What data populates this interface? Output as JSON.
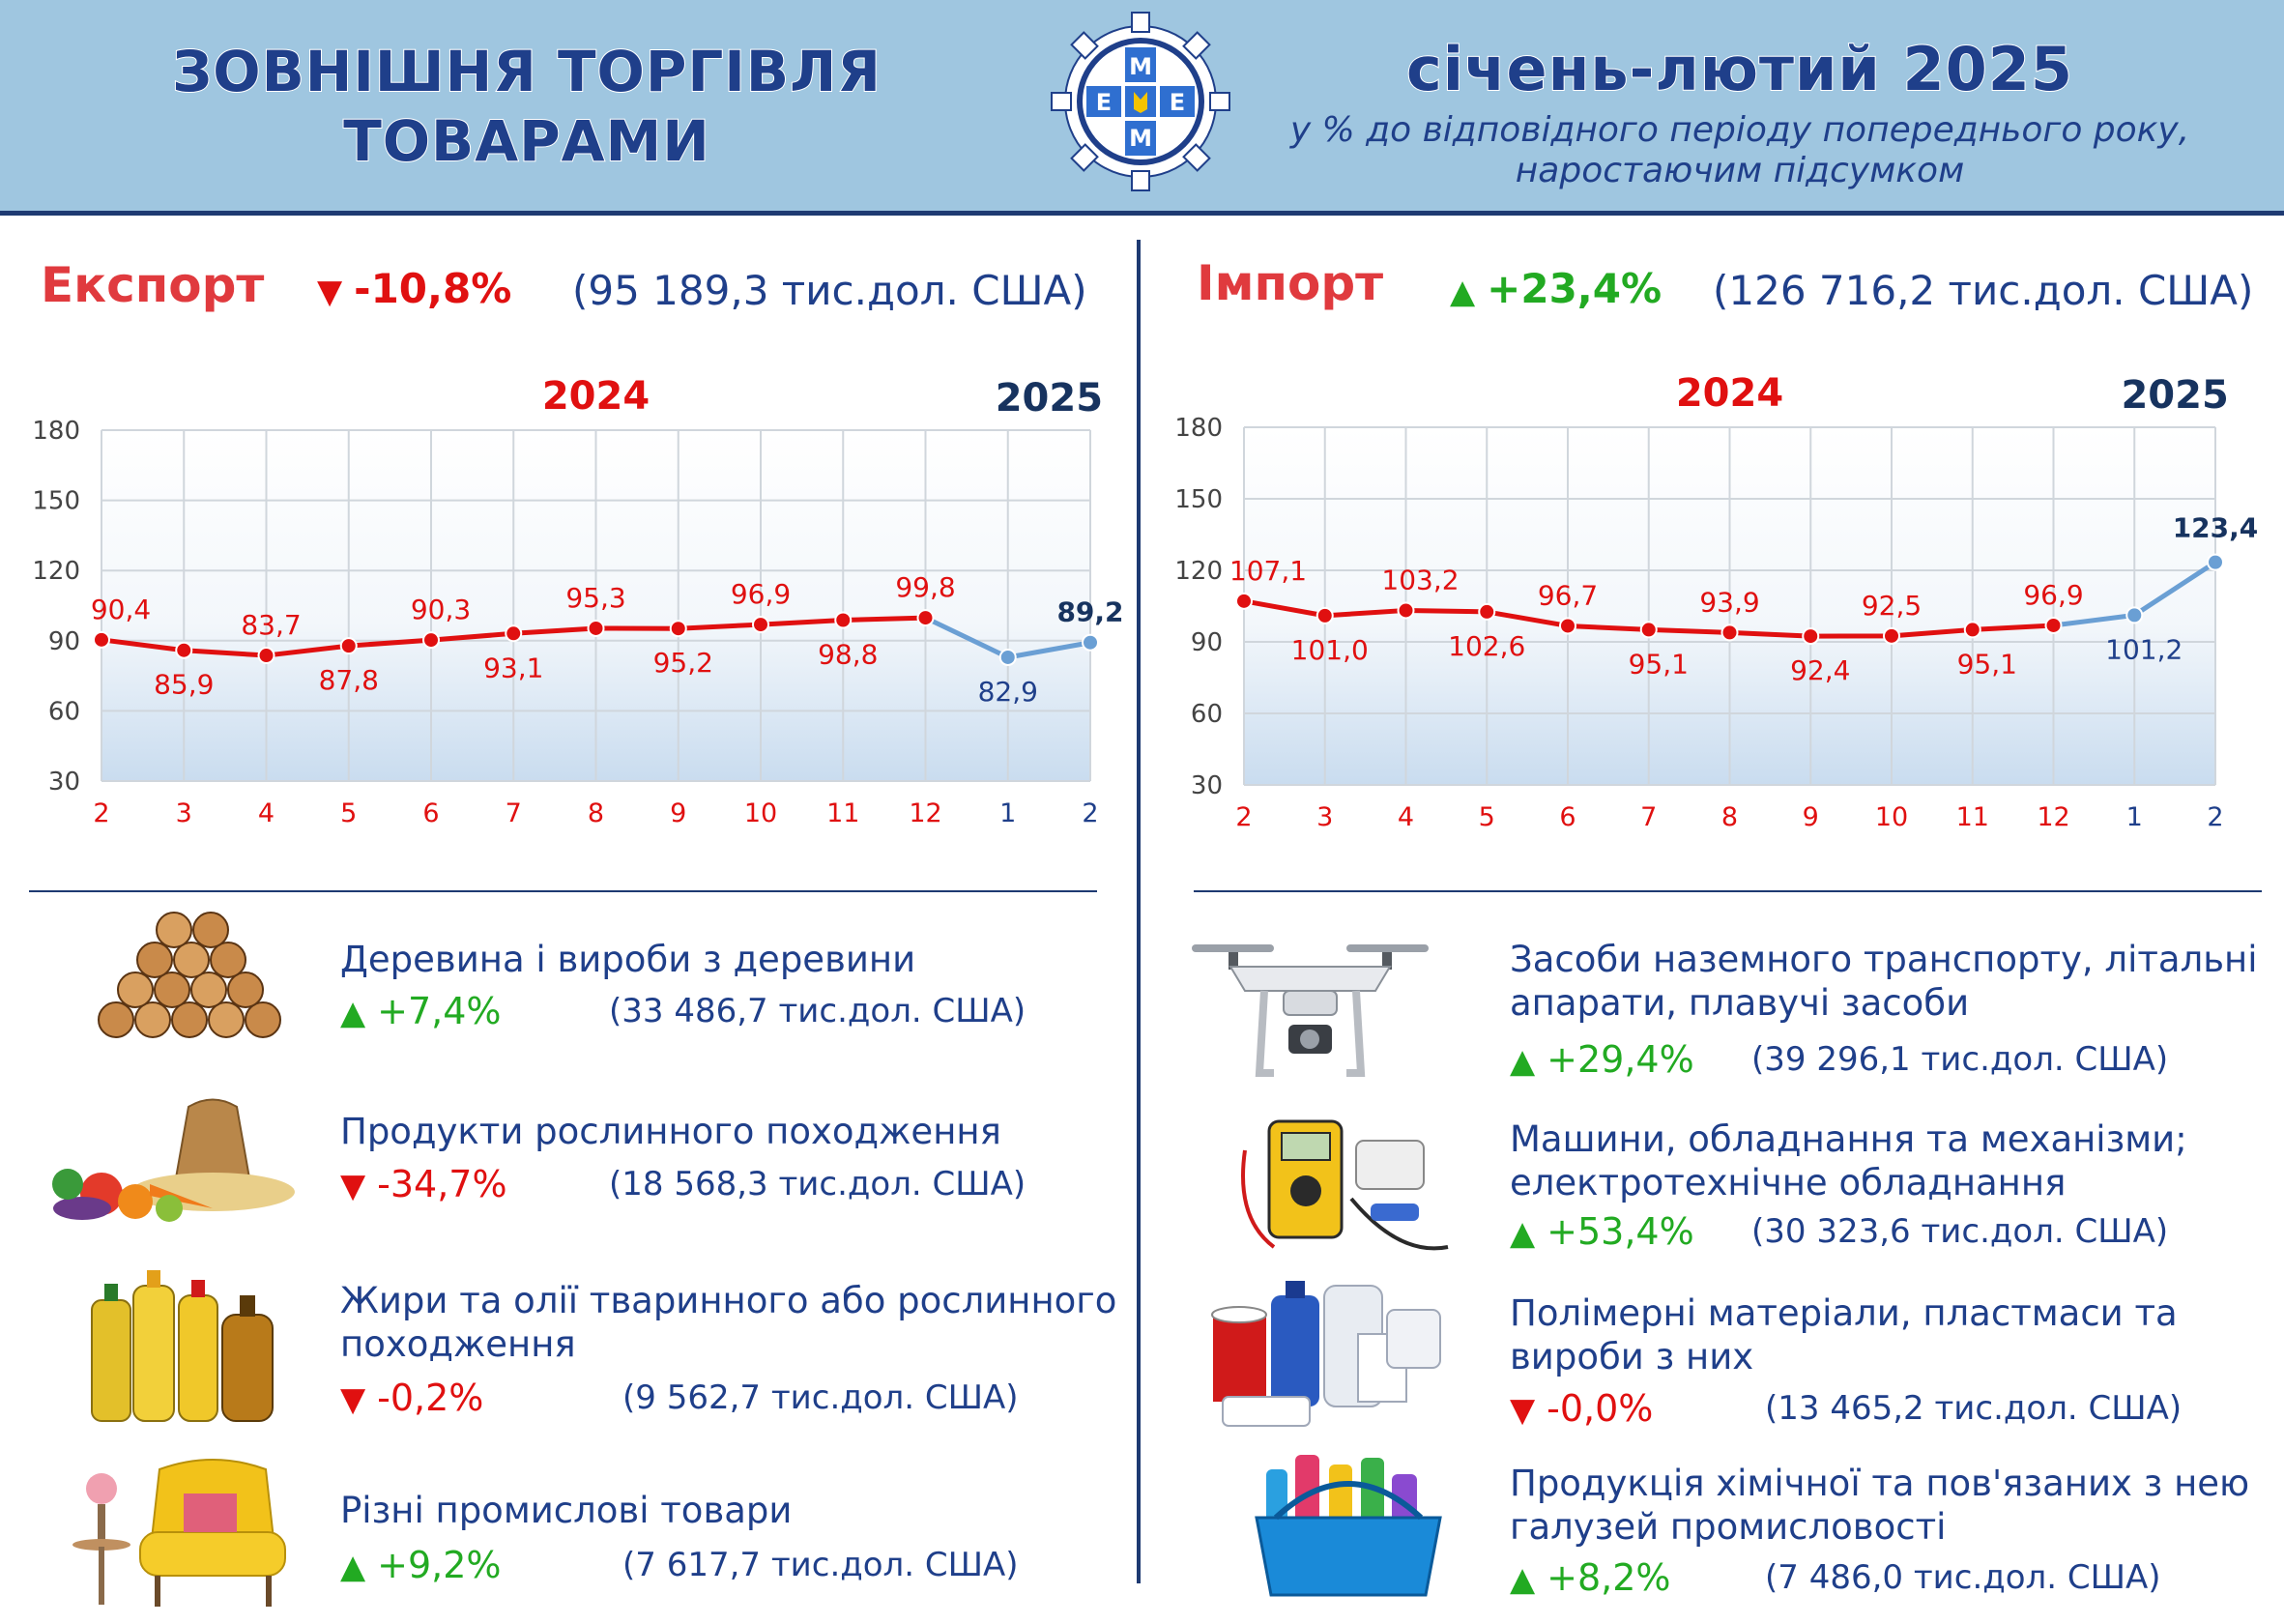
{
  "header": {
    "title_line1": "ЗОВНІШНЯ ТОРГІВЛЯ",
    "title_line2": "ТОВАРАМИ",
    "period": "січень-лютий 2025",
    "subtitle_line1": "у % до відповідного періоду попереднього року,",
    "subtitle_line2": "наростаючим підсумком",
    "logo_letters": "МЕЕМ"
  },
  "colors": {
    "header_bg": "#9fc6e0",
    "navy": "#1f3f8a",
    "red": "#e01010",
    "green": "#22aa22",
    "line_2025": "#6a9fd4"
  },
  "export": {
    "title": "Експорт",
    "change": "-10,8%",
    "direction": "down",
    "total": "(95 189,3 тис.дол. США)",
    "year_2024": "2024",
    "year_2025": "2025",
    "categories": [
      {
        "name_line1": "Деревина і вироби з деревини",
        "name_line2": "",
        "change": "+7,4%",
        "direction": "up",
        "total": "(33 486,7 тис.дол. США)",
        "icon": "firewood-icon"
      },
      {
        "name_line1": "Продукти рослинного походження",
        "name_line2": "",
        "change": "-34,7%",
        "direction": "down",
        "total": "(18 568,3 тис.дол. США)",
        "icon": "vegetables-grain-icon"
      },
      {
        "name_line1": "Жири та олії тваринного або рослинного",
        "name_line2": "походження",
        "change": "-0,2%",
        "direction": "down",
        "total": "(9 562,7 тис.дол. США)",
        "icon": "oil-bottles-icon"
      },
      {
        "name_line1": "Різні промислові товари",
        "name_line2": "",
        "change": "+9,2%",
        "direction": "up",
        "total": "(7 617,7 тис.дол. США)",
        "icon": "armchair-icon"
      }
    ]
  },
  "import": {
    "title": "Імпорт",
    "change": "+23,4%",
    "direction": "up",
    "total": "(126 716,2 тис.дол. США)",
    "year_2024": "2024",
    "year_2025": "2025",
    "categories": [
      {
        "name_line1": "Засоби наземного транспорту, літальні",
        "name_line2": "апарати, плавучі засоби",
        "change": "+29,4%",
        "direction": "up",
        "total": "(39 296,1 тис.дол. США)",
        "icon": "drone-icon"
      },
      {
        "name_line1": "Машини, обладнання та механізми;",
        "name_line2": "електротехнічне обладнання",
        "change": "+53,4%",
        "direction": "up",
        "total": "(30 323,6 тис.дол. США)",
        "icon": "multimeter-icon"
      },
      {
        "name_line1": "Полімерні матеріали, пластмаси та",
        "name_line2": "вироби з них",
        "change": "-0,0%",
        "direction": "down",
        "total": "(13 465,2 тис.дол. США)",
        "icon": "plastic-containers-icon"
      },
      {
        "name_line1": "Продукція хімічної та пов'язаних з нею",
        "name_line2": "галузей промисловості",
        "change": "+8,2%",
        "direction": "up",
        "total": "(7 486,0 тис.дол. США)",
        "icon": "cleaning-basket-icon"
      }
    ]
  },
  "chart_data": [
    {
      "type": "line",
      "title": "",
      "x": [
        "2",
        "3",
        "4",
        "5",
        "6",
        "7",
        "8",
        "9",
        "10",
        "11",
        "12",
        "1",
        "2"
      ],
      "ylim": [
        30,
        180
      ],
      "yticks": [
        30,
        60,
        90,
        120,
        150,
        180
      ],
      "grid": true,
      "series": [
        {
          "name": "2024",
          "values": [
            90.4,
            85.9,
            83.7,
            87.8,
            90.3,
            93.1,
            95.3,
            95.2,
            96.9,
            98.8,
            99.8,
            null,
            null
          ],
          "labels": [
            "90,4",
            "85,9",
            "83,7",
            "87,8",
            "90,3",
            "93,1",
            "95,3",
            "95,2",
            "96,9",
            "98,8",
            "99,8",
            "",
            ""
          ]
        },
        {
          "name": "2025",
          "values": [
            null,
            null,
            null,
            null,
            null,
            null,
            null,
            null,
            null,
            null,
            99.8,
            82.9,
            89.2
          ],
          "labels": [
            "",
            "",
            "",
            "",
            "",
            "",
            "",
            "",
            "",
            "",
            "",
            "82,9",
            "89,2"
          ]
        }
      ]
    },
    {
      "type": "line",
      "title": "",
      "x": [
        "2",
        "3",
        "4",
        "5",
        "6",
        "7",
        "8",
        "9",
        "10",
        "11",
        "12",
        "1",
        "2"
      ],
      "ylim": [
        30,
        180
      ],
      "yticks": [
        30,
        60,
        90,
        120,
        150,
        180
      ],
      "grid": true,
      "series": [
        {
          "name": "2024",
          "values": [
            107.1,
            101.0,
            103.2,
            102.6,
            96.7,
            95.1,
            93.9,
            92.4,
            92.5,
            95.1,
            96.9,
            null,
            null
          ],
          "labels": [
            "107,1",
            "101,0",
            "103,2",
            "102,6",
            "96,7",
            "95,1",
            "93,9",
            "92,4",
            "92,5",
            "95,1",
            "96,9",
            "",
            ""
          ]
        },
        {
          "name": "2025",
          "values": [
            null,
            null,
            null,
            null,
            null,
            null,
            null,
            null,
            null,
            null,
            96.9,
            101.2,
            123.4
          ],
          "labels": [
            "",
            "",
            "",
            "",
            "",
            "",
            "",
            "",
            "",
            "",
            "",
            "101,2",
            "123,4"
          ]
        }
      ]
    }
  ]
}
